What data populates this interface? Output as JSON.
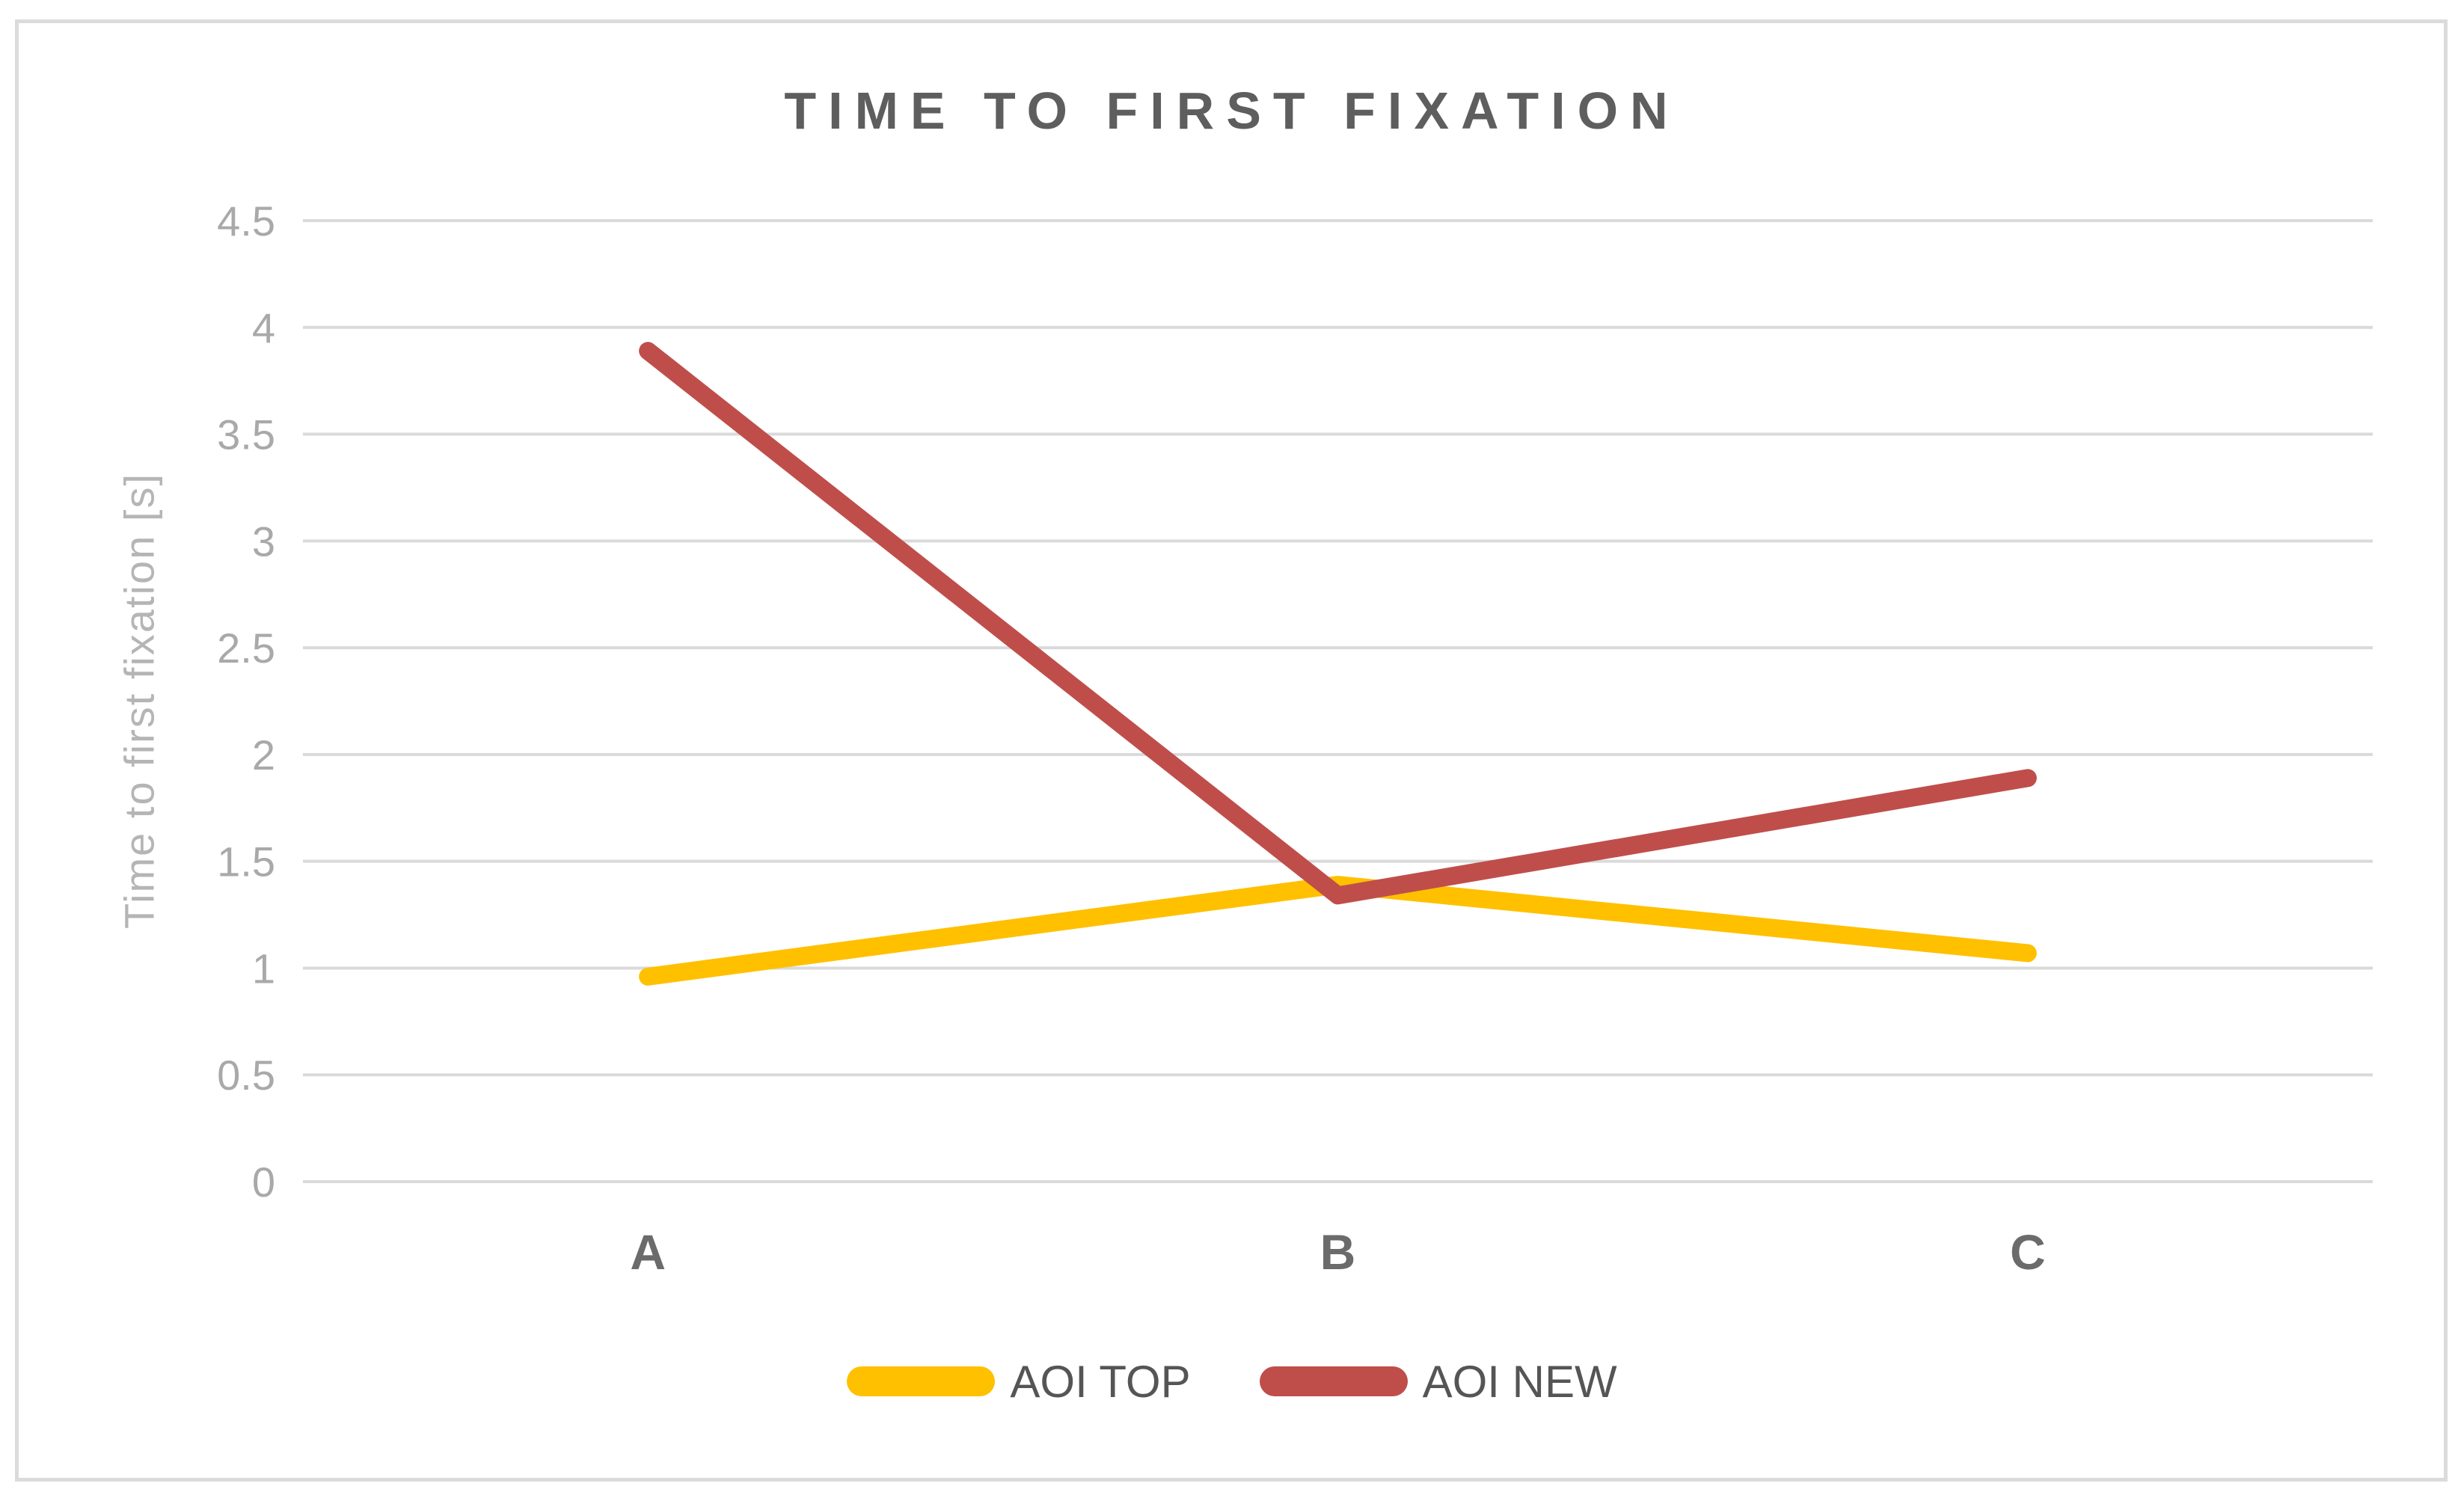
{
  "chart": {
    "title": "TIME TO FIRST FIXATION",
    "y_axis_title": "Time to first fixation [s]"
  },
  "chart_data": {
    "type": "line",
    "title": "TIME TO FIRST FIXATION",
    "xlabel": "",
    "ylabel": "Time to first fixation [s]",
    "categories": [
      "A",
      "B",
      "C"
    ],
    "series": [
      {
        "name": "AOI TOP",
        "color": "#FFC000",
        "values": [
          0.96,
          1.39,
          1.07
        ]
      },
      {
        "name": "AOI NEW",
        "color": "#BF4E4B",
        "values": [
          3.89,
          1.34,
          1.89
        ]
      }
    ],
    "ylim": [
      0,
      4.5
    ],
    "y_ticks": [
      0,
      0.5,
      1,
      1.5,
      2,
      2.5,
      3,
      3.5,
      4,
      4.5
    ],
    "grid": "horizontal",
    "gridline_color": "#DADADA",
    "legend_position": "bottom"
  }
}
